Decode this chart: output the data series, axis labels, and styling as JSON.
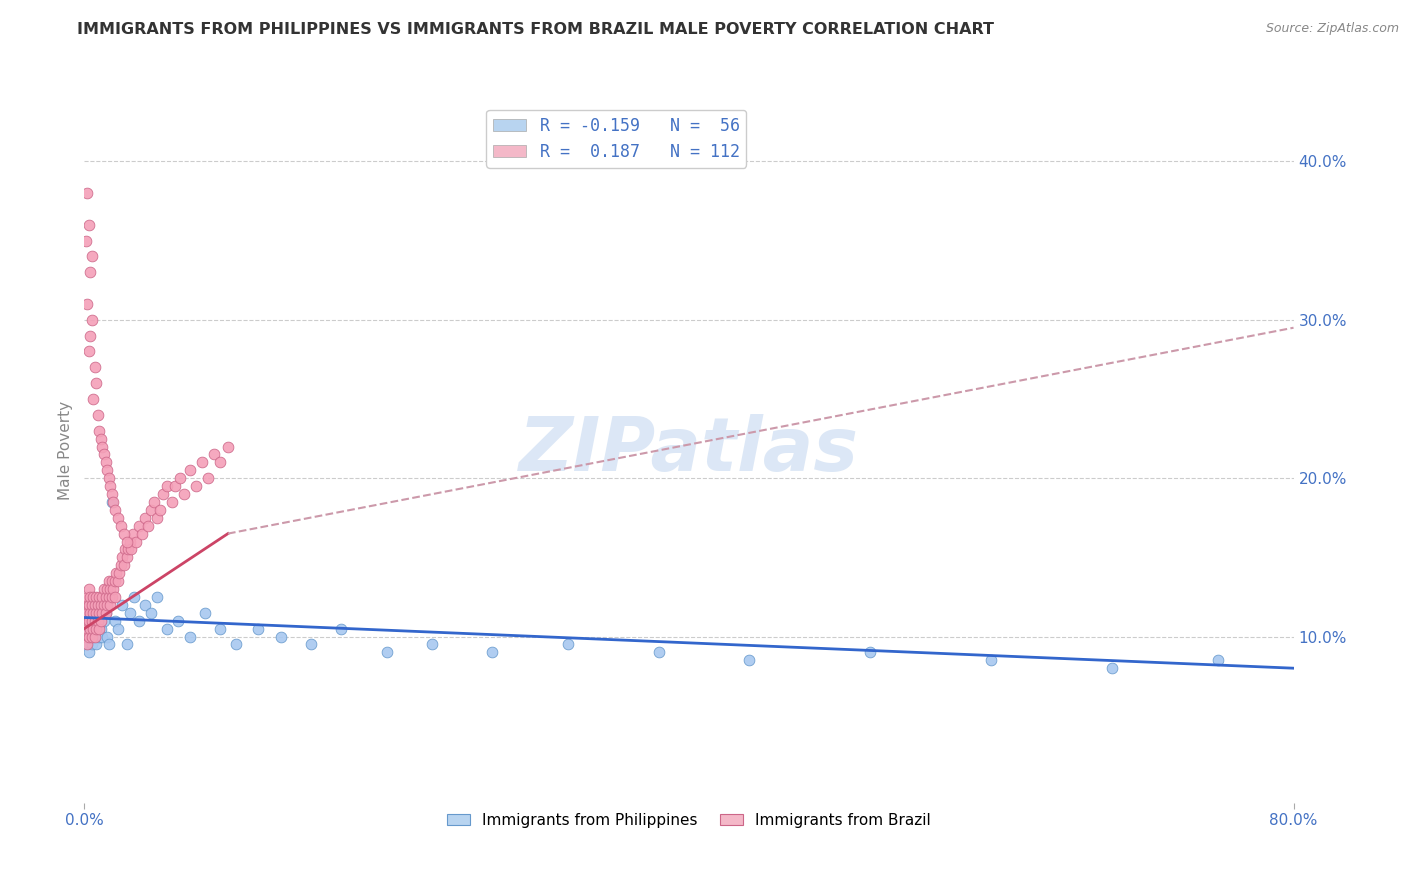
{
  "title": "IMMIGRANTS FROM PHILIPPINES VS IMMIGRANTS FROM BRAZIL MALE POVERTY CORRELATION CHART",
  "source": "Source: ZipAtlas.com",
  "xlim": [
    0.0,
    0.8
  ],
  "ylim": [
    -0.005,
    0.44
  ],
  "yticks": [
    0.1,
    0.2,
    0.3,
    0.4
  ],
  "xticks": [
    0.0,
    0.8
  ],
  "philippines": {
    "label": "Immigrants from Philippines",
    "color": "#a8c8f0",
    "edge_color": "#6699cc",
    "R": -0.159,
    "N": 56,
    "trend_color": "#3366cc",
    "trend_style": "solid",
    "x": [
      0.001,
      0.001,
      0.002,
      0.002,
      0.003,
      0.003,
      0.004,
      0.004,
      0.005,
      0.005,
      0.006,
      0.006,
      0.007,
      0.007,
      0.008,
      0.008,
      0.009,
      0.01,
      0.01,
      0.011,
      0.012,
      0.013,
      0.014,
      0.015,
      0.016,
      0.018,
      0.02,
      0.022,
      0.025,
      0.028,
      0.03,
      0.033,
      0.036,
      0.04,
      0.044,
      0.048,
      0.055,
      0.062,
      0.07,
      0.08,
      0.09,
      0.1,
      0.115,
      0.13,
      0.15,
      0.17,
      0.2,
      0.23,
      0.27,
      0.32,
      0.38,
      0.44,
      0.52,
      0.6,
      0.68,
      0.75
    ],
    "y": [
      0.1,
      0.11,
      0.095,
      0.115,
      0.09,
      0.105,
      0.1,
      0.12,
      0.095,
      0.11,
      0.105,
      0.115,
      0.1,
      0.11,
      0.095,
      0.105,
      0.11,
      0.1,
      0.115,
      0.105,
      0.1,
      0.11,
      0.115,
      0.1,
      0.095,
      0.185,
      0.11,
      0.105,
      0.12,
      0.095,
      0.115,
      0.125,
      0.11,
      0.12,
      0.115,
      0.125,
      0.105,
      0.11,
      0.1,
      0.115,
      0.105,
      0.095,
      0.105,
      0.1,
      0.095,
      0.105,
      0.09,
      0.095,
      0.09,
      0.095,
      0.09,
      0.085,
      0.09,
      0.085,
      0.08,
      0.085
    ],
    "trend_x": [
      0.0,
      0.8
    ],
    "trend_y": [
      0.112,
      0.08
    ]
  },
  "brazil": {
    "label": "Immigrants from Brazil",
    "color": "#f4a0b8",
    "edge_color": "#cc6688",
    "R": 0.187,
    "N": 112,
    "trend_color": "#cc4466",
    "trend_style": "solid",
    "x": [
      0.001,
      0.001,
      0.001,
      0.002,
      0.002,
      0.002,
      0.002,
      0.003,
      0.003,
      0.003,
      0.003,
      0.004,
      0.004,
      0.004,
      0.005,
      0.005,
      0.005,
      0.006,
      0.006,
      0.006,
      0.007,
      0.007,
      0.007,
      0.008,
      0.008,
      0.008,
      0.009,
      0.009,
      0.01,
      0.01,
      0.01,
      0.011,
      0.011,
      0.012,
      0.012,
      0.013,
      0.013,
      0.014,
      0.014,
      0.015,
      0.015,
      0.016,
      0.016,
      0.017,
      0.017,
      0.018,
      0.018,
      0.019,
      0.02,
      0.02,
      0.021,
      0.022,
      0.023,
      0.024,
      0.025,
      0.026,
      0.027,
      0.028,
      0.029,
      0.03,
      0.031,
      0.032,
      0.034,
      0.036,
      0.038,
      0.04,
      0.042,
      0.044,
      0.046,
      0.048,
      0.05,
      0.052,
      0.055,
      0.058,
      0.06,
      0.063,
      0.066,
      0.07,
      0.074,
      0.078,
      0.082,
      0.086,
      0.09,
      0.095,
      0.001,
      0.002,
      0.002,
      0.003,
      0.003,
      0.004,
      0.004,
      0.005,
      0.005,
      0.006,
      0.007,
      0.008,
      0.009,
      0.01,
      0.011,
      0.012,
      0.013,
      0.014,
      0.015,
      0.016,
      0.017,
      0.018,
      0.019,
      0.02,
      0.022,
      0.024,
      0.026,
      0.028
    ],
    "y": [
      0.1,
      0.11,
      0.12,
      0.095,
      0.105,
      0.115,
      0.125,
      0.1,
      0.11,
      0.12,
      0.13,
      0.105,
      0.115,
      0.125,
      0.1,
      0.11,
      0.12,
      0.105,
      0.115,
      0.125,
      0.1,
      0.11,
      0.12,
      0.105,
      0.115,
      0.125,
      0.11,
      0.12,
      0.105,
      0.115,
      0.125,
      0.11,
      0.12,
      0.115,
      0.125,
      0.12,
      0.13,
      0.115,
      0.125,
      0.12,
      0.13,
      0.125,
      0.135,
      0.12,
      0.13,
      0.125,
      0.135,
      0.13,
      0.125,
      0.135,
      0.14,
      0.135,
      0.14,
      0.145,
      0.15,
      0.145,
      0.155,
      0.15,
      0.155,
      0.16,
      0.155,
      0.165,
      0.16,
      0.17,
      0.165,
      0.175,
      0.17,
      0.18,
      0.185,
      0.175,
      0.18,
      0.19,
      0.195,
      0.185,
      0.195,
      0.2,
      0.19,
      0.205,
      0.195,
      0.21,
      0.2,
      0.215,
      0.21,
      0.22,
      0.35,
      0.31,
      0.38,
      0.28,
      0.36,
      0.29,
      0.33,
      0.3,
      0.34,
      0.25,
      0.27,
      0.26,
      0.24,
      0.23,
      0.225,
      0.22,
      0.215,
      0.21,
      0.205,
      0.2,
      0.195,
      0.19,
      0.185,
      0.18,
      0.175,
      0.17,
      0.165,
      0.16
    ],
    "trend_x": [
      0.0,
      0.095
    ],
    "trend_y": [
      0.105,
      0.165
    ]
  },
  "brazil_dashed": {
    "trend_color": "#cc99aa",
    "trend_x": [
      0.095,
      0.8
    ],
    "trend_y": [
      0.165,
      0.295
    ]
  },
  "legend_top": {
    "entries": [
      {
        "label": "R = -0.159   N =  56",
        "color": "#b8d4f0"
      },
      {
        "label": "R =  0.187   N = 112",
        "color": "#f4b8c8"
      }
    ]
  },
  "watermark": "ZIPatlas",
  "watermark_color": "#c5d8f0",
  "background_color": "#ffffff",
  "grid_color": "#cccccc",
  "title_color": "#333333",
  "axis_label_color": "#4472C4",
  "title_fontsize": 11.5,
  "tick_fontsize": 11,
  "ylabel": "Male Poverty",
  "ylabel_fontsize": 11
}
